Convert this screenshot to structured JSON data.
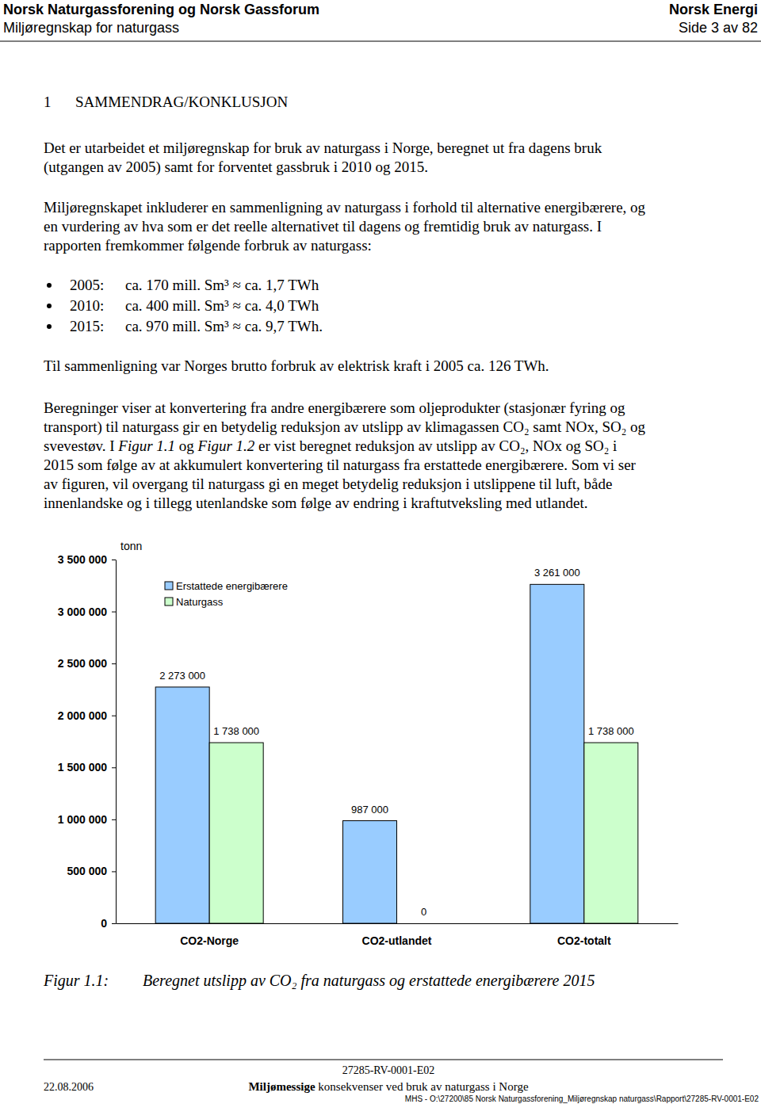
{
  "header": {
    "org": "Norsk Naturgassforening og Norsk Gassforum",
    "company": "Norsk Energi",
    "doc_title": "Miljøregnskap for naturgass",
    "page": "Side 3 av 82"
  },
  "section": {
    "number": "1",
    "title": "SAMMENDRAG/KONKLUSJON"
  },
  "body": {
    "paragraph_1": [
      "Det er utarbeidet et miljøregnskap for bruk av naturgass i Norge, beregnet ut fra dagens bruk",
      "(utgangen av 2005) samt for forventet gassbruk i 2010 og 2015."
    ],
    "paragraph_2": [
      "Miljøregnskapet inkluderer en sammenligning av naturgass i forhold til alternative energibærere, og",
      "en vurdering av hva som er det reelle alternativet til dagens og fremtidig bruk av naturgass. I",
      "rapporten fremkommer følgende forbruk av naturgass:"
    ],
    "bullets": [
      {
        "year": "2005:",
        "text": "ca. 170 mill. Sm³ ≈ ca. 1,7 TWh"
      },
      {
        "year": "2010:",
        "text": "ca. 400 mill. Sm³ ≈ ca. 4,0 TWh"
      },
      {
        "year": "2015:",
        "text": "ca. 970 mill. Sm³ ≈ ca. 9,7 TWh."
      }
    ],
    "comparison": "Til sammenligning var Norges brutto forbruk av elektrisk kraft i 2005 ca. 126 TWh.",
    "paragraph_3": [
      [
        {
          "text": "Beregninger viser at konvertering fra andre energibærere som oljeprodukter (stasjonær fyring og"
        }
      ],
      [
        {
          "text": "transport) til naturgass gir en betydelig reduksjon av utslipp av klimagassen CO₂ samt NOx, SO₂ og"
        }
      ],
      [
        {
          "text": "svevestøv. I "
        },
        {
          "text": "Figur 1.1",
          "italic": true
        },
        {
          "text": " og "
        },
        {
          "text": "Figur 1.2",
          "italic": true
        },
        {
          "text": " er vist beregnet reduksjon av utslipp av CO₂, NOx og SO₂ i"
        }
      ],
      [
        {
          "text": "2015 som følge av at akkumulert konvertering til naturgass fra erstattede energibærere. Som vi ser"
        }
      ],
      [
        {
          "text": "av figuren, vil overgang til naturgass gi en meget betydelig reduksjon i utslippene til luft, både"
        }
      ],
      [
        {
          "text": "innenlandske og i tillegg utenlandske som følge av endring i kraftutveksling med utlandet."
        }
      ]
    ]
  },
  "chart_data": {
    "type": "bar",
    "ylabel": "tonn",
    "categories": [
      "CO2-Norge",
      "CO2-utlandet",
      "CO2-totalt"
    ],
    "series": [
      {
        "name": "Erstattede energibærere",
        "color": "#99ccff",
        "values": [
          2273000,
          987000,
          3261000
        ],
        "value_labels": [
          "2 273 000",
          "987 000",
          "3 261 000"
        ]
      },
      {
        "name": "Naturgass",
        "color": "#ccffcc",
        "values": [
          1738000,
          0,
          1738000
        ],
        "value_labels": [
          "1 738 000",
          "0",
          "1 738 000"
        ]
      }
    ],
    "ylim": [
      0,
      3500000
    ],
    "yticks": [
      0,
      {
        "value": 500000,
        "label": "500 000"
      },
      {
        "value": 1000000,
        "label": "1 000 000"
      },
      {
        "value": 1500000,
        "label": "1 500 000"
      },
      {
        "value": 2000000,
        "label": "2 000 000"
      },
      {
        "value": 2500000,
        "label": "2 500 000"
      },
      {
        "value": 3000000,
        "label": "3 000 000"
      },
      {
        "value": 3500000,
        "label": "3 500 000"
      }
    ],
    "legend": "top-left",
    "data_labels": true
  },
  "caption": {
    "number": "Figur 1.1:",
    "text": "Beregnet utslipp av CO₂ fra naturgass og erstattede energibærere 2015"
  },
  "footer": {
    "doc_id": "27285-RV-0001-E02",
    "date": "22.08.2006",
    "title": [
      {
        "text": "Miljømessige",
        "bold": true
      },
      {
        "text": " konsekvenser ved bruk av naturgass i Norge"
      }
    ],
    "path": "MHS - O:\\27200\\85 Norsk Naturgassforening_Miljøregnskap naturgass\\Rapport\\27285-RV-0001-E02"
  }
}
